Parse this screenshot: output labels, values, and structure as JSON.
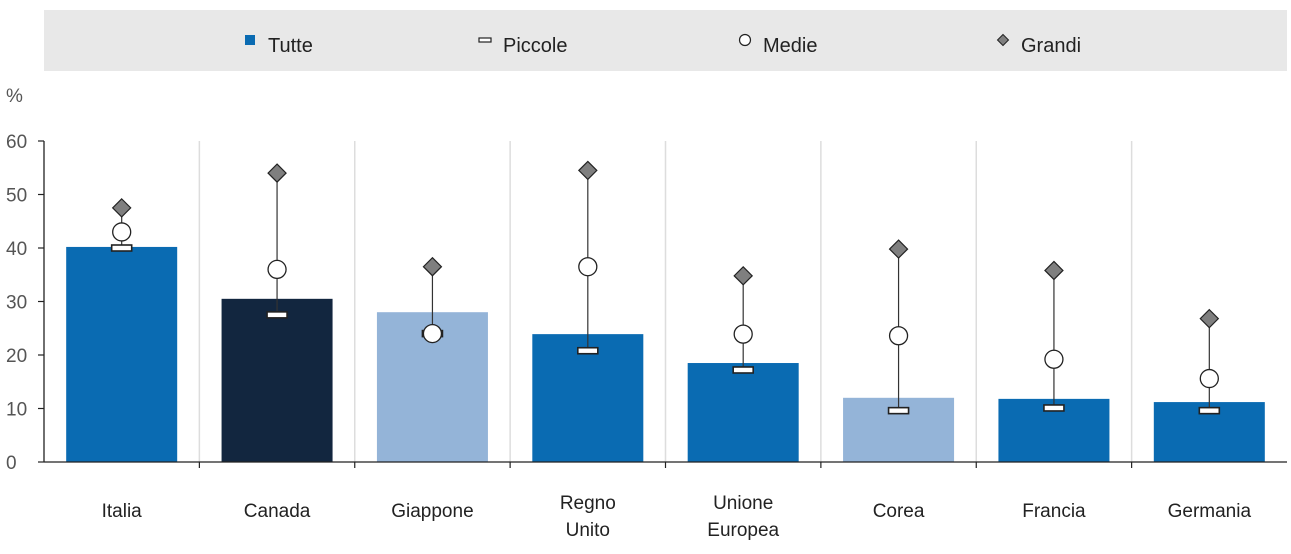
{
  "chart_data": {
    "type": "bar",
    "title": "",
    "xlabel": "",
    "ylabel": "%",
    "ylim": [
      0,
      60
    ],
    "yticks": [
      0,
      10,
      20,
      30,
      40,
      50,
      60
    ],
    "grid": "vertical",
    "legend_position": "top",
    "categories": [
      [
        "Italia"
      ],
      [
        "Canada"
      ],
      [
        "Giappone"
      ],
      [
        "Regno",
        "Unito"
      ],
      [
        "Unione",
        "Europea"
      ],
      [
        "Corea"
      ],
      [
        "Francia"
      ],
      [
        "Germania"
      ]
    ],
    "bar_colors": [
      "#0a6bb2",
      "#12263f",
      "#94b4d8",
      "#0a6bb2",
      "#0a6bb2",
      "#94b4d8",
      "#0a6bb2",
      "#0a6bb2"
    ],
    "series": [
      {
        "name": "Tutte",
        "marker": "bar",
        "values": [
          40.2,
          30.5,
          28.0,
          23.9,
          18.5,
          12.0,
          11.8,
          11.2
        ]
      },
      {
        "name": "Piccole",
        "marker": "dash",
        "values": [
          40.0,
          27.5,
          24.0,
          20.8,
          17.2,
          9.6,
          10.1,
          9.6
        ]
      },
      {
        "name": "Medie",
        "marker": "circle",
        "values": [
          43.0,
          36.0,
          24.0,
          36.5,
          23.9,
          23.6,
          19.2,
          15.6
        ]
      },
      {
        "name": "Grandi",
        "marker": "diamond",
        "values": [
          47.5,
          54.0,
          36.5,
          54.5,
          34.8,
          39.8,
          35.8,
          26.8
        ]
      }
    ],
    "colors": {
      "legend_square": "#0a6bb2",
      "legend_bg": "#e8e8e8",
      "diamond": "#7f7f7f",
      "axis": "#222222",
      "grid": "#dddddd"
    }
  }
}
